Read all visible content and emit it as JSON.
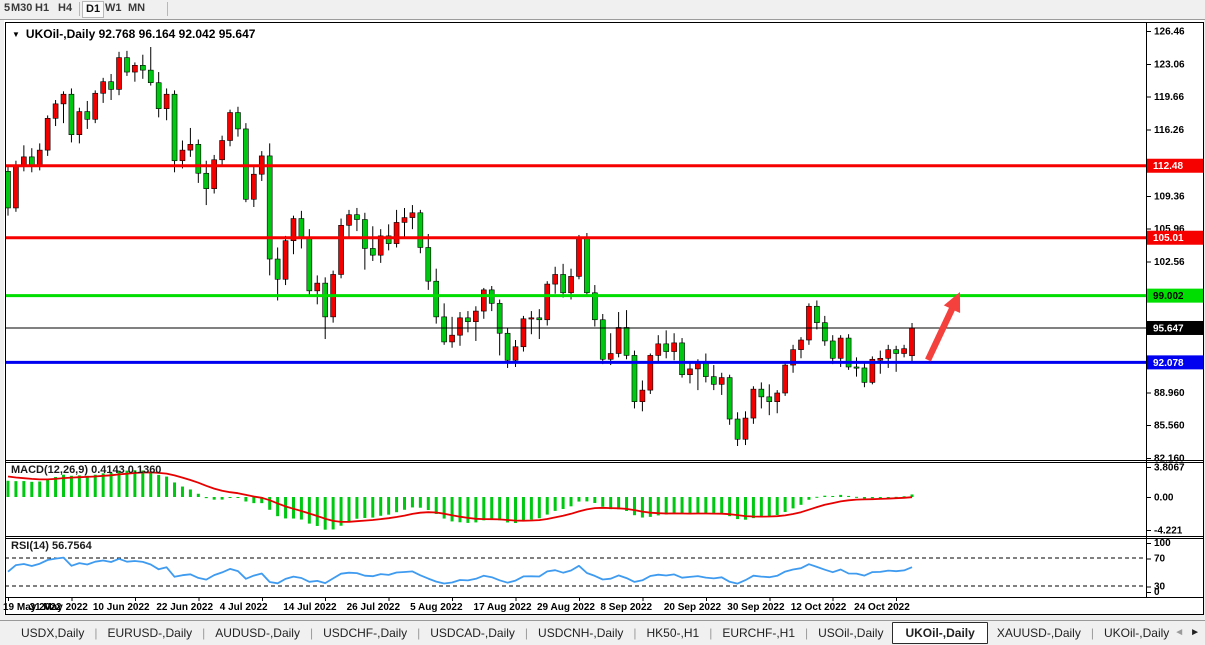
{
  "toolbar": {
    "timeframes": [
      "5",
      "M30",
      "H1",
      "H4",
      "D1",
      "W1",
      "MN"
    ],
    "active": "D1"
  },
  "icons": {
    "symbol_dropdown": "▼",
    "tab_nav_left": "◄",
    "tab_nav_right": "►"
  },
  "chart": {
    "symbol": "UKOil-,Daily",
    "title_line": "UKOil-,Daily  92.768 96.164 92.042 95.647",
    "ohlc": {
      "open": "92.768",
      "high": "96.164",
      "low": "92.042",
      "close": "95.647"
    }
  },
  "chart_data": {
    "type": "candlestick",
    "title": "UKOil-,Daily",
    "colors": {
      "bull": "#f20000",
      "bear": "#00c812",
      "wick": "#000000",
      "macd_histogram": "#00c812",
      "macd_signal": "#e60000",
      "rsi_line": "#3f9bf0",
      "guide_dash": "#000000"
    },
    "price_axis": {
      "labels": [
        {
          "v": 126.46,
          "text": "126.46"
        },
        {
          "v": 123.06,
          "text": "123.06"
        },
        {
          "v": 119.66,
          "text": "119.66"
        },
        {
          "v": 116.26,
          "text": "116.26"
        },
        {
          "v": 109.36,
          "text": "109.36"
        },
        {
          "v": 105.96,
          "text": "105.96"
        },
        {
          "v": 102.56,
          "text": "102.56"
        },
        {
          "v": 88.96,
          "text": "88.960"
        },
        {
          "v": 85.56,
          "text": "85.560"
        },
        {
          "v": 82.16,
          "text": "82.160"
        }
      ]
    },
    "x_axis": {
      "tick_labels": [
        "19 May 2022",
        "31 May 2022",
        "10 Jun 2022",
        "22 Jun 2022",
        "4 Jul 2022",
        "14 Jul 2022",
        "26 Jul 2022",
        "5 Aug 2022",
        "17 Aug 2022",
        "29 Aug 2022",
        "8 Sep 2022",
        "20 Sep 2022",
        "30 Sep 2022",
        "12 Oct 2022",
        "24 Oct 2022"
      ],
      "tick_bar_indices": [
        0,
        8,
        16,
        24,
        32,
        40,
        48,
        56,
        64,
        72,
        80,
        88,
        96,
        104,
        112
      ]
    },
    "levels": [
      {
        "value": 112.48,
        "label": "112.48",
        "color": "#f60000",
        "text_color": "#ffffff",
        "width": 3
      },
      {
        "value": 105.01,
        "label": "105.01",
        "color": "#f60000",
        "text_color": "#ffffff",
        "width": 3
      },
      {
        "value": 99.002,
        "label": "99.002",
        "color": "#00dd00",
        "text_color": "#000000",
        "width": 3
      },
      {
        "value": 95.647,
        "label": "95.647",
        "color": "#000000",
        "text_color": "#ffffff",
        "width": 1
      },
      {
        "value": 92.078,
        "label": "92.078",
        "color": "#0000f0",
        "text_color": "#ffffff",
        "width": 3
      }
    ],
    "annotation_arrow": {
      "from": [
        928,
        360
      ],
      "to": [
        960,
        292
      ],
      "color": "#f5413d"
    },
    "indicators": {
      "macd": {
        "label": "MACD(12,26,9) 0.4143 0.1360",
        "params": [
          12,
          26,
          9
        ],
        "axis_labels": [
          {
            "v": 3.8067,
            "text": "3.8067"
          },
          {
            "v": 0,
            "text": "0.00"
          },
          {
            "v": -4.221,
            "text": "-4.221"
          }
        ]
      },
      "rsi": {
        "label": "RSI(14) 56.7564",
        "period": 14,
        "axis_labels": [
          "100",
          "70",
          "30",
          "0"
        ],
        "guides": [
          70,
          30
        ]
      }
    },
    "warmup_closes": [
      99.0,
      100.2,
      101.5,
      100.8,
      102.6,
      104.1,
      103.3,
      105.2,
      106.8,
      106.0,
      107.4,
      108.1,
      106.6,
      105.2,
      106.9,
      108.3,
      109.6,
      108.1,
      110.4,
      111.3,
      110.2,
      112.4,
      111.2,
      113.6,
      114.1,
      112.9,
      113.8,
      114.4,
      112.5,
      111.0
    ],
    "candles": [
      [
        111.9,
        112.6,
        107.3,
        108.1
      ],
      [
        108.1,
        113.0,
        107.7,
        112.5
      ],
      [
        112.5,
        114.6,
        111.9,
        113.4
      ],
      [
        113.4,
        114.3,
        111.8,
        112.4
      ],
      [
        112.4,
        114.8,
        112.0,
        114.1
      ],
      [
        114.1,
        117.7,
        113.5,
        117.4
      ],
      [
        117.4,
        119.3,
        116.6,
        118.9
      ],
      [
        118.9,
        120.2,
        116.9,
        119.9
      ],
      [
        119.9,
        120.5,
        114.9,
        115.7
      ],
      [
        115.7,
        118.5,
        114.8,
        118.1
      ],
      [
        118.1,
        119.2,
        116.3,
        117.3
      ],
      [
        117.3,
        120.3,
        116.9,
        120.0
      ],
      [
        120.0,
        121.6,
        119.0,
        121.2
      ],
      [
        121.2,
        122.0,
        119.3,
        120.4
      ],
      [
        120.4,
        124.3,
        119.8,
        123.7
      ],
      [
        123.7,
        124.4,
        121.8,
        122.2
      ],
      [
        122.2,
        123.2,
        121.2,
        122.9
      ],
      [
        122.9,
        124.0,
        121.5,
        122.4
      ],
      [
        122.4,
        124.8,
        120.8,
        121.1
      ],
      [
        121.1,
        122.2,
        117.5,
        118.4
      ],
      [
        118.4,
        120.5,
        117.2,
        119.9
      ],
      [
        119.9,
        120.3,
        111.8,
        113.0
      ],
      [
        113.0,
        115.1,
        112.2,
        114.1
      ],
      [
        114.1,
        116.4,
        113.4,
        114.7
      ],
      [
        114.7,
        115.2,
        110.7,
        111.7
      ],
      [
        111.7,
        113.0,
        108.4,
        110.1
      ],
      [
        110.1,
        113.6,
        109.6,
        113.1
      ],
      [
        113.1,
        115.6,
        112.4,
        115.1
      ],
      [
        115.1,
        118.3,
        114.5,
        118.0
      ],
      [
        118.0,
        118.6,
        115.5,
        116.3
      ],
      [
        116.3,
        116.9,
        108.7,
        109.0
      ],
      [
        109.0,
        112.6,
        108.2,
        111.6
      ],
      [
        111.6,
        114.0,
        110.9,
        113.5
      ],
      [
        113.5,
        114.8,
        101.1,
        102.8
      ],
      [
        102.8,
        104.0,
        98.5,
        100.7
      ],
      [
        100.7,
        105.2,
        100.1,
        104.7
      ],
      [
        104.7,
        107.3,
        103.3,
        107.0
      ],
      [
        107.0,
        107.8,
        103.9,
        105.1
      ],
      [
        105.1,
        105.9,
        98.9,
        99.5
      ],
      [
        99.5,
        101.1,
        98.1,
        100.3
      ],
      [
        100.3,
        100.9,
        94.5,
        96.8
      ],
      [
        96.8,
        101.6,
        96.2,
        101.2
      ],
      [
        101.2,
        107.0,
        100.8,
        106.3
      ],
      [
        106.3,
        107.9,
        105.0,
        107.4
      ],
      [
        107.4,
        108.1,
        105.7,
        106.9
      ],
      [
        106.9,
        107.6,
        101.7,
        103.9
      ],
      [
        103.9,
        106.2,
        102.6,
        103.2
      ],
      [
        103.2,
        105.9,
        102.4,
        105.2
      ],
      [
        105.2,
        106.4,
        103.7,
        104.4
      ],
      [
        104.4,
        107.9,
        104.0,
        106.6
      ],
      [
        106.6,
        108.1,
        105.1,
        107.1
      ],
      [
        107.1,
        108.4,
        105.9,
        107.6
      ],
      [
        107.6,
        107.9,
        103.4,
        104.0
      ],
      [
        104.0,
        105.4,
        99.6,
        100.5
      ],
      [
        100.5,
        101.8,
        96.1,
        96.8
      ],
      [
        96.8,
        98.2,
        93.9,
        94.2
      ],
      [
        94.2,
        96.8,
        93.6,
        94.9
      ],
      [
        94.9,
        97.3,
        93.8,
        96.7
      ],
      [
        96.7,
        97.4,
        95.2,
        96.3
      ],
      [
        96.3,
        97.9,
        94.3,
        97.4
      ],
      [
        97.4,
        99.8,
        96.6,
        99.6
      ],
      [
        99.6,
        100.0,
        97.4,
        98.2
      ],
      [
        98.2,
        98.6,
        92.8,
        95.1
      ],
      [
        95.1,
        95.6,
        91.5,
        92.3
      ],
      [
        92.3,
        94.4,
        91.6,
        93.7
      ],
      [
        93.7,
        96.9,
        93.2,
        96.6
      ],
      [
        96.6,
        97.4,
        95.0,
        96.7
      ],
      [
        96.7,
        97.6,
        94.5,
        96.5
      ],
      [
        96.5,
        100.5,
        95.9,
        100.2
      ],
      [
        100.2,
        102.0,
        99.2,
        101.2
      ],
      [
        101.2,
        102.3,
        98.8,
        99.3
      ],
      [
        99.3,
        101.8,
        98.6,
        101.0
      ],
      [
        101.0,
        105.3,
        100.7,
        105.1
      ],
      [
        105.1,
        105.5,
        98.9,
        99.3
      ],
      [
        99.3,
        100.1,
        95.8,
        96.5
      ],
      [
        96.5,
        97.1,
        91.9,
        92.4
      ],
      [
        92.4,
        95.1,
        91.8,
        93.0
      ],
      [
        93.0,
        97.3,
        92.6,
        95.7
      ],
      [
        95.7,
        97.5,
        92.4,
        92.8
      ],
      [
        92.8,
        93.3,
        87.3,
        88.0
      ],
      [
        88.0,
        90.2,
        87.0,
        89.2
      ],
      [
        89.2,
        93.0,
        88.8,
        92.8
      ],
      [
        92.8,
        94.9,
        92.1,
        94.0
      ],
      [
        94.0,
        95.4,
        92.5,
        93.2
      ],
      [
        93.2,
        95.1,
        92.3,
        94.1
      ],
      [
        94.1,
        94.6,
        90.5,
        90.8
      ],
      [
        90.8,
        92.0,
        89.9,
        91.4
      ],
      [
        91.4,
        92.4,
        89.2,
        92.0
      ],
      [
        92.0,
        93.0,
        90.0,
        90.6
      ],
      [
        90.6,
        91.8,
        89.2,
        89.8
      ],
      [
        89.8,
        91.0,
        88.7,
        90.5
      ],
      [
        90.5,
        90.8,
        85.6,
        86.2
      ],
      [
        86.2,
        86.9,
        83.4,
        84.1
      ],
      [
        84.1,
        87.0,
        83.5,
        86.3
      ],
      [
        86.3,
        89.6,
        85.7,
        89.3
      ],
      [
        89.3,
        90.0,
        87.3,
        88.5
      ],
      [
        88.5,
        89.8,
        86.6,
        88.0
      ],
      [
        88.0,
        89.2,
        86.8,
        88.9
      ],
      [
        88.9,
        92.1,
        88.6,
        91.8
      ],
      [
        91.8,
        93.9,
        91.0,
        93.4
      ],
      [
        93.4,
        94.7,
        92.5,
        94.4
      ],
      [
        94.4,
        98.2,
        93.9,
        97.9
      ],
      [
        97.9,
        98.5,
        95.5,
        96.2
      ],
      [
        96.2,
        96.9,
        93.8,
        94.3
      ],
      [
        94.3,
        94.9,
        91.9,
        92.5
      ],
      [
        92.5,
        94.9,
        91.6,
        94.6
      ],
      [
        94.6,
        95.0,
        91.3,
        91.6
      ],
      [
        91.6,
        92.6,
        90.6,
        91.5
      ],
      [
        91.5,
        92.2,
        89.5,
        90.0
      ],
      [
        90.0,
        92.7,
        89.8,
        92.4
      ],
      [
        92.3,
        93.3,
        90.9,
        92.5
      ],
      [
        92.5,
        93.9,
        91.5,
        93.4
      ],
      [
        93.4,
        93.8,
        91.1,
        93.0
      ],
      [
        93.0,
        93.9,
        92.6,
        93.5
      ],
      [
        92.768,
        96.164,
        92.042,
        95.647
      ]
    ]
  },
  "tabs": {
    "items": [
      "USDX,Daily",
      "EURUSD-,Daily",
      "AUDUSD-,Daily",
      "USDCHF-,Daily",
      "USDCAD-,Daily",
      "USDCNH-,Daily",
      "HK50-,H1",
      "EURCHF-,H1",
      "USOil-,Daily",
      "UKOil-,Daily",
      "XAUUSD-,Daily",
      "UKOil-,Daily"
    ],
    "active_index": 9
  }
}
